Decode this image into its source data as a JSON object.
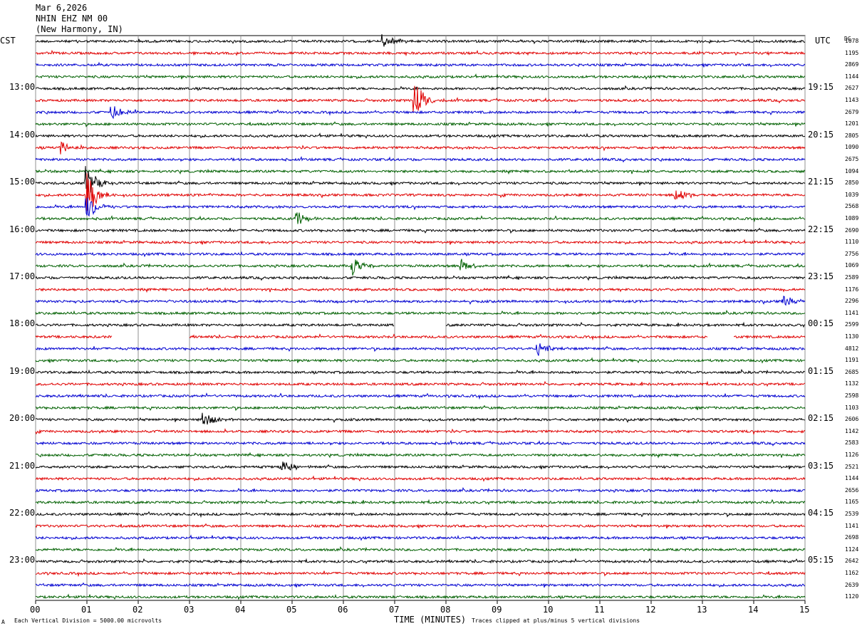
{
  "header": {
    "date": "Mar 6,2026",
    "station": "NHIN EHZ NM 00",
    "location": "(New Harmony, IN)"
  },
  "left_tz": "CST",
  "right_tz": "UTC",
  "right_corner": "DC",
  "footer": {
    "left_mark": "A",
    "scale_note": "Each Vertical Division = 5000.00 microvolts",
    "xlabel": "TIME (MINUTES)",
    "clip_note": "Traces clipped at plus/minus 5 vertical divisions"
  },
  "colors": {
    "cycle": [
      "#000000",
      "#e00000",
      "#0000d0",
      "#006000"
    ],
    "grid": "#909090"
  },
  "chart_data": {
    "type": "line",
    "title": "NHIN EHZ NM 00",
    "xlabel": "TIME (MINUTES)",
    "xlim": [
      0,
      15
    ],
    "x_ticks": [
      "00",
      "01",
      "02",
      "03",
      "04",
      "05",
      "06",
      "07",
      "08",
      "09",
      "10",
      "11",
      "12",
      "13",
      "14",
      "15"
    ],
    "traces_per_hour": 4,
    "left_hour_labels": [
      "13:00",
      "14:00",
      "15:00",
      "16:00",
      "17:00",
      "18:00",
      "19:00",
      "20:00",
      "21:00",
      "22:00",
      "23:00"
    ],
    "right_hour_labels": [
      "19:15",
      "20:15",
      "21:15",
      "22:15",
      "23:15",
      "00:15",
      "01:15",
      "02:15",
      "03:15",
      "04:15",
      "05:15"
    ],
    "trace_counts": [
      "1078",
      "1195",
      "2869",
      "1144",
      "2627",
      "1143",
      "2679",
      "1201",
      "2805",
      "1090",
      "2675",
      "1094",
      "2850",
      "1039",
      "2568",
      "1089",
      "2690",
      "1110",
      "2756",
      "1069",
      "2589",
      "1176",
      "2296",
      "1141",
      "2599",
      "1130",
      "4812",
      "1191",
      "2685",
      "1132",
      "2598",
      "1103",
      "2606",
      "1142",
      "2583",
      "1126",
      "2521",
      "1144",
      "2656",
      "1165",
      "2539",
      "1141",
      "2698",
      "1124",
      "2642",
      "1162",
      "2639",
      "1120"
    ],
    "events": [
      {
        "row": 0,
        "minute": 6.8,
        "amp": 1.4
      },
      {
        "row": 5,
        "minute": 7.4,
        "amp": 3.5
      },
      {
        "row": 6,
        "minute": 1.5,
        "amp": 1.2
      },
      {
        "row": 9,
        "minute": 0.5,
        "amp": 1.2
      },
      {
        "row": 12,
        "minute": 1.0,
        "amp": 3.0
      },
      {
        "row": 13,
        "minute": 1.0,
        "amp": 4.0
      },
      {
        "row": 13,
        "minute": 12.5,
        "amp": 1.5
      },
      {
        "row": 14,
        "minute": 1.0,
        "amp": 2.5
      },
      {
        "row": 15,
        "minute": 5.1,
        "amp": 1.3
      },
      {
        "row": 19,
        "minute": 6.2,
        "amp": 1.6
      },
      {
        "row": 19,
        "minute": 8.3,
        "amp": 1.4
      },
      {
        "row": 22,
        "minute": 14.6,
        "amp": 1.2
      },
      {
        "row": 26,
        "minute": 9.8,
        "amp": 1.3
      },
      {
        "row": 32,
        "minute": 3.3,
        "amp": 1.3
      },
      {
        "row": 36,
        "minute": 4.8,
        "amp": 1.3
      }
    ],
    "gaps": [
      {
        "row": 24,
        "start": 7.0,
        "end": 8.0
      },
      {
        "row": 25,
        "start": 1.5,
        "end": 3.0
      },
      {
        "row": 25,
        "start": 13.1,
        "end": 13.6
      }
    ]
  }
}
